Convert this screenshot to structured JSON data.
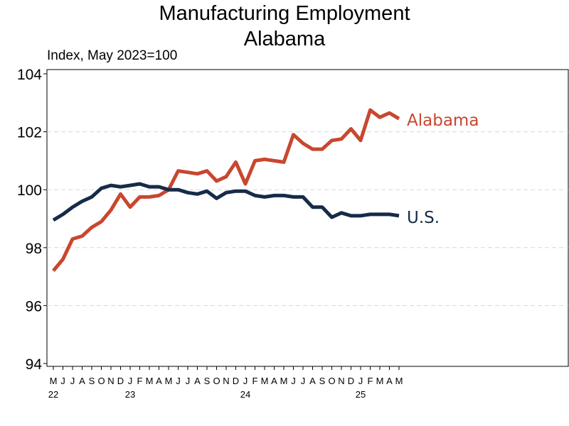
{
  "chart_data": {
    "type": "line",
    "title": "Manufacturing Employment",
    "subtitle": "Alabama",
    "ylabel": "Index, May 2023=100",
    "ylim": [
      94,
      104
    ],
    "yticks": [
      94,
      96,
      98,
      100,
      102,
      104
    ],
    "grid": true,
    "x_month_labels": [
      "M",
      "J",
      "J",
      "A",
      "S",
      "O",
      "N",
      "D",
      "J",
      "F",
      "M",
      "A",
      "M",
      "J",
      "J",
      "A",
      "S",
      "O",
      "N",
      "D",
      "J",
      "F",
      "M",
      "A",
      "M",
      "J",
      "J",
      "A",
      "S",
      "O",
      "N",
      "D",
      "J",
      "F",
      "M",
      "A",
      "M"
    ],
    "x_year_labels": [
      {
        "label": "22",
        "index": 0
      },
      {
        "label": "23",
        "index": 8
      },
      {
        "label": "24",
        "index": 20
      },
      {
        "label": "25",
        "index": 32
      }
    ],
    "series": [
      {
        "name": "Alabama",
        "color": "#c8472f",
        "values": [
          97.2,
          97.6,
          98.3,
          98.4,
          98.7,
          98.9,
          99.3,
          99.85,
          99.4,
          99.75,
          99.75,
          99.8,
          100.0,
          100.65,
          100.6,
          100.55,
          100.65,
          100.3,
          100.45,
          100.95,
          100.2,
          101.0,
          101.05,
          101.0,
          100.95,
          101.9,
          101.6,
          101.4,
          101.4,
          101.7,
          101.75,
          102.1,
          101.7,
          102.75,
          102.5,
          102.65,
          102.45
        ]
      },
      {
        "name": "U.S.",
        "color": "#162b48",
        "values": [
          98.95,
          99.15,
          99.4,
          99.6,
          99.75,
          100.05,
          100.15,
          100.1,
          100.15,
          100.2,
          100.1,
          100.1,
          100.0,
          100.0,
          99.9,
          99.85,
          99.95,
          99.7,
          99.9,
          99.95,
          99.95,
          99.8,
          99.75,
          99.8,
          99.8,
          99.75,
          99.75,
          99.4,
          99.4,
          99.05,
          99.2,
          99.1,
          99.1,
          99.15,
          99.15,
          99.15,
          99.1
        ]
      }
    ]
  }
}
